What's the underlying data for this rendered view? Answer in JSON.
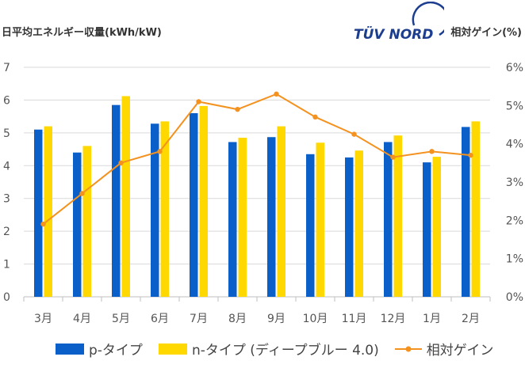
{
  "header": {
    "left_axis_title": "日平均エネルギー収量(kWh/kW)",
    "right_axis_title": "相対ゲイン(%)",
    "logo_text": "TÜV NORD"
  },
  "colors": {
    "p_type": "#0a5fc8",
    "n_type": "#ffd800",
    "gain": "#f4921f",
    "grid": "#d9d9d9"
  },
  "chart_data": {
    "type": "bar",
    "categories": [
      "3月",
      "4月",
      "5月",
      "6月",
      "7月",
      "8月",
      "9月",
      "10月",
      "11月",
      "12月",
      "1月",
      "2月"
    ],
    "series": [
      {
        "name": "p-タイプ",
        "axis": "left",
        "values": [
          5.1,
          4.4,
          5.85,
          5.28,
          5.6,
          4.72,
          4.87,
          4.35,
          4.25,
          4.72,
          4.1,
          5.18
        ]
      },
      {
        "name": "n-タイプ (ディープブルー 4.0)",
        "axis": "left",
        "values": [
          5.2,
          4.6,
          6.12,
          5.35,
          5.82,
          4.85,
          5.2,
          4.7,
          4.46,
          4.92,
          4.27,
          5.35
        ]
      },
      {
        "name": "相対ゲイン",
        "axis": "right",
        "type": "line",
        "values": [
          1.9,
          2.7,
          3.5,
          3.8,
          5.1,
          4.9,
          5.3,
          4.7,
          4.25,
          3.65,
          3.8,
          3.7
        ]
      }
    ],
    "ylim": [
      0,
      7
    ],
    "yticks": [
      "0",
      "1",
      "2",
      "3",
      "4",
      "5",
      "6",
      "7"
    ],
    "y2lim": [
      0,
      6
    ],
    "y2ticks": [
      "0%",
      "1%",
      "2%",
      "3%",
      "4%",
      "5%",
      "6%"
    ],
    "grid": true,
    "legend_position": "bottom"
  }
}
